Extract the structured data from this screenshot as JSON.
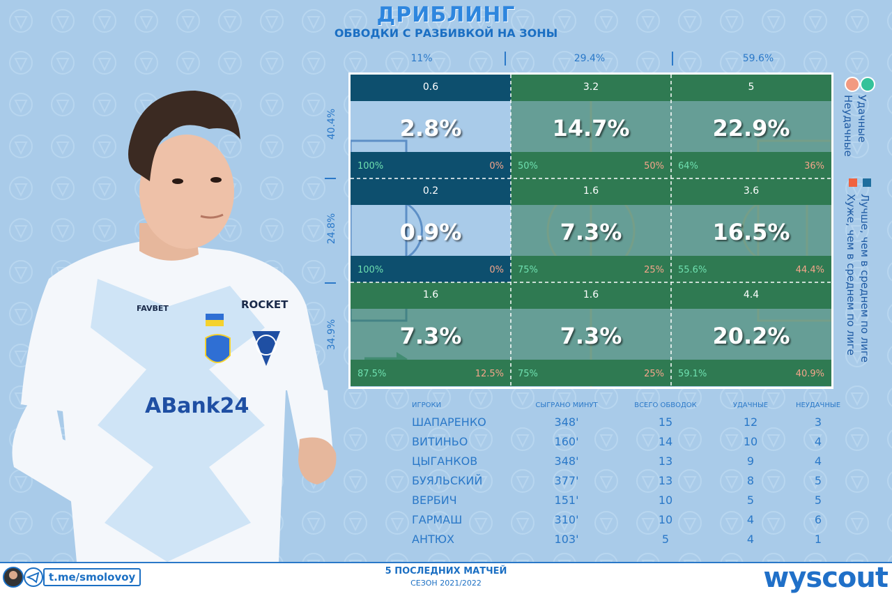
{
  "header": {
    "title": "ДРИБЛИНГ",
    "subtitle": "ОБВОДКИ С РАЗБИВКОЙ НА ЗОНЫ"
  },
  "chart_data": {
    "type": "heatmap",
    "title": "ДРИБЛИНГ",
    "subtitle": "ОБВОДКИ С РАЗБИВКОЙ НА ЗОНЫ",
    "column_pcts": [
      "11%",
      "29.4%",
      "59.6%"
    ],
    "row_pcts": [
      "40.4%",
      "24.8%",
      "34.9%"
    ],
    "zones": [
      [
        {
          "count": "0.6",
          "pct": "2.8%",
          "succ": "100%",
          "fail": "0%",
          "better": false
        },
        {
          "count": "3.2",
          "pct": "14.7%",
          "succ": "50%",
          "fail": "50%",
          "better": true
        },
        {
          "count": "5",
          "pct": "22.9%",
          "succ": "64%",
          "fail": "36%",
          "better": true
        }
      ],
      [
        {
          "count": "0.2",
          "pct": "0.9%",
          "succ": "100%",
          "fail": "0%",
          "better": false
        },
        {
          "count": "1.6",
          "pct": "7.3%",
          "succ": "75%",
          "fail": "25%",
          "better": true
        },
        {
          "count": "3.6",
          "pct": "16.5%",
          "succ": "55.6%",
          "fail": "44.4%",
          "better": true
        }
      ],
      [
        {
          "count": "1.6",
          "pct": "7.3%",
          "succ": "87.5%",
          "fail": "12.5%",
          "better": true
        },
        {
          "count": "1.6",
          "pct": "7.3%",
          "succ": "75%",
          "fail": "25%",
          "better": true
        },
        {
          "count": "4.4",
          "pct": "20.2%",
          "succ": "59.1%",
          "fail": "40.9%",
          "better": true
        }
      ]
    ],
    "legend": {
      "success": "Удачные",
      "fail": "Неудачные",
      "better": "Лучше, чем в среднем по лиге",
      "worse": "Хуже, чем в среднем по лиге"
    }
  },
  "colors": {
    "better": "#2f7a52",
    "worse": "#0d4f6e",
    "success_dot": "#34c29a",
    "fail_dot": "#f29a80",
    "better_sq": "#1f6e9e",
    "worse_sq": "#f0623f"
  },
  "table": {
    "headers": [
      "ИГРОКИ",
      "СЫГРАНО МИНУТ",
      "ВСЕГО ОБВОДОК",
      "УДАЧНЫЕ",
      "НЕУДАЧНЫЕ"
    ],
    "rows": [
      [
        "ШАПАРЕНКО",
        "348'",
        "15",
        "12",
        "3"
      ],
      [
        "ВИТИНЬО",
        "160'",
        "14",
        "10",
        "4"
      ],
      [
        "ЦЫГАНКОВ",
        "348'",
        "13",
        "9",
        "4"
      ],
      [
        "БУЯЛЬСКИЙ",
        "377'",
        "13",
        "8",
        "5"
      ],
      [
        "ВЕРБИЧ",
        "151'",
        "10",
        "5",
        "5"
      ],
      [
        "ГАРМАШ",
        "310'",
        "10",
        "4",
        "6"
      ],
      [
        "АНТЮХ",
        "103'",
        "5",
        "4",
        "1"
      ]
    ]
  },
  "player_shirt": {
    "sponsor_top": "FAVBET",
    "sponsor_right": "ROCKET",
    "sponsor_main": "ABank24"
  },
  "footer": {
    "telegram": "t.me/smolovoy",
    "title": "5 ПОСЛЕДНИХ МАТЧЕЙ",
    "season": "СЕЗОН 2021/2022",
    "brand": "wyscout"
  }
}
